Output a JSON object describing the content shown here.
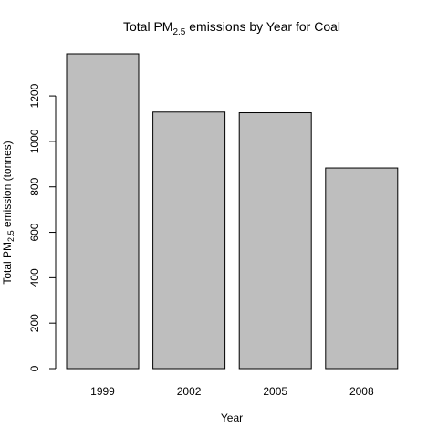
{
  "chart_data": {
    "type": "bar",
    "title": {
      "prefix": "Total PM",
      "sub": "2.5",
      "suffix": " emissions by Year for Coal"
    },
    "xlabel": "Year",
    "ylabel": {
      "prefix": "Total PM",
      "sub": "2.5",
      "suffix": " emission (tonnes)"
    },
    "categories": [
      "1999",
      "2002",
      "2005",
      "2008"
    ],
    "values": [
      1385,
      1129,
      1126,
      883
    ],
    "y_ticks": [
      0,
      200,
      400,
      600,
      800,
      1000,
      1200
    ],
    "ylim": [
      0,
      1385
    ],
    "grid": false,
    "bar_fill": "#bebebe",
    "bar_stroke": "#000000"
  }
}
